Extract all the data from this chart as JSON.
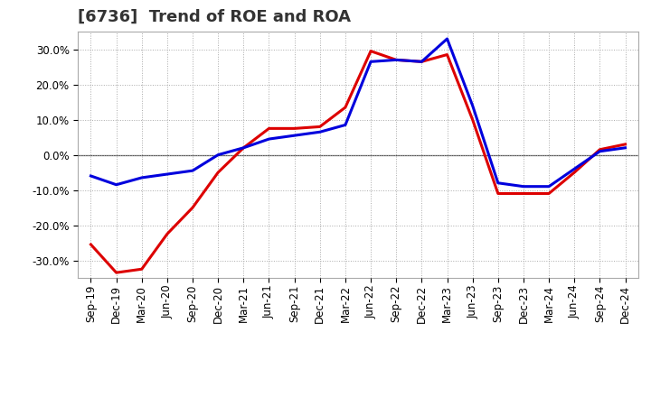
{
  "title": "[6736]  Trend of ROE and ROA",
  "x_labels": [
    "Sep-19",
    "Dec-19",
    "Mar-20",
    "Jun-20",
    "Sep-20",
    "Dec-20",
    "Mar-21",
    "Jun-21",
    "Sep-21",
    "Dec-21",
    "Mar-22",
    "Jun-22",
    "Sep-22",
    "Dec-22",
    "Mar-23",
    "Jun-23",
    "Sep-23",
    "Dec-23",
    "Mar-24",
    "Jun-24",
    "Sep-24",
    "Dec-24"
  ],
  "roe": [
    -25.5,
    -33.5,
    -32.5,
    -22.5,
    -15.0,
    -5.0,
    2.0,
    7.5,
    7.5,
    8.0,
    13.5,
    29.5,
    27.0,
    26.5,
    28.5,
    10.0,
    -11.0,
    -11.0,
    -11.0,
    -5.0,
    1.5,
    3.0
  ],
  "roa": [
    -6.0,
    -8.5,
    -6.5,
    -5.5,
    -4.5,
    0.0,
    2.0,
    4.5,
    5.5,
    6.5,
    8.5,
    26.5,
    27.0,
    26.5,
    33.0,
    14.0,
    -8.0,
    -9.0,
    -9.0,
    -4.0,
    1.0,
    2.0
  ],
  "roe_color": "#dd0000",
  "roa_color": "#0000dd",
  "ylim": [
    -35,
    35
  ],
  "ytick_values": [
    -30,
    -20,
    -10,
    0,
    10,
    20,
    30
  ],
  "background_color": "#ffffff",
  "plot_bg_color": "#ffffff",
  "grid_color": "#aaaaaa",
  "line_width": 2.2,
  "title_fontsize": 13,
  "legend_fontsize": 10,
  "tick_fontsize": 8.5
}
